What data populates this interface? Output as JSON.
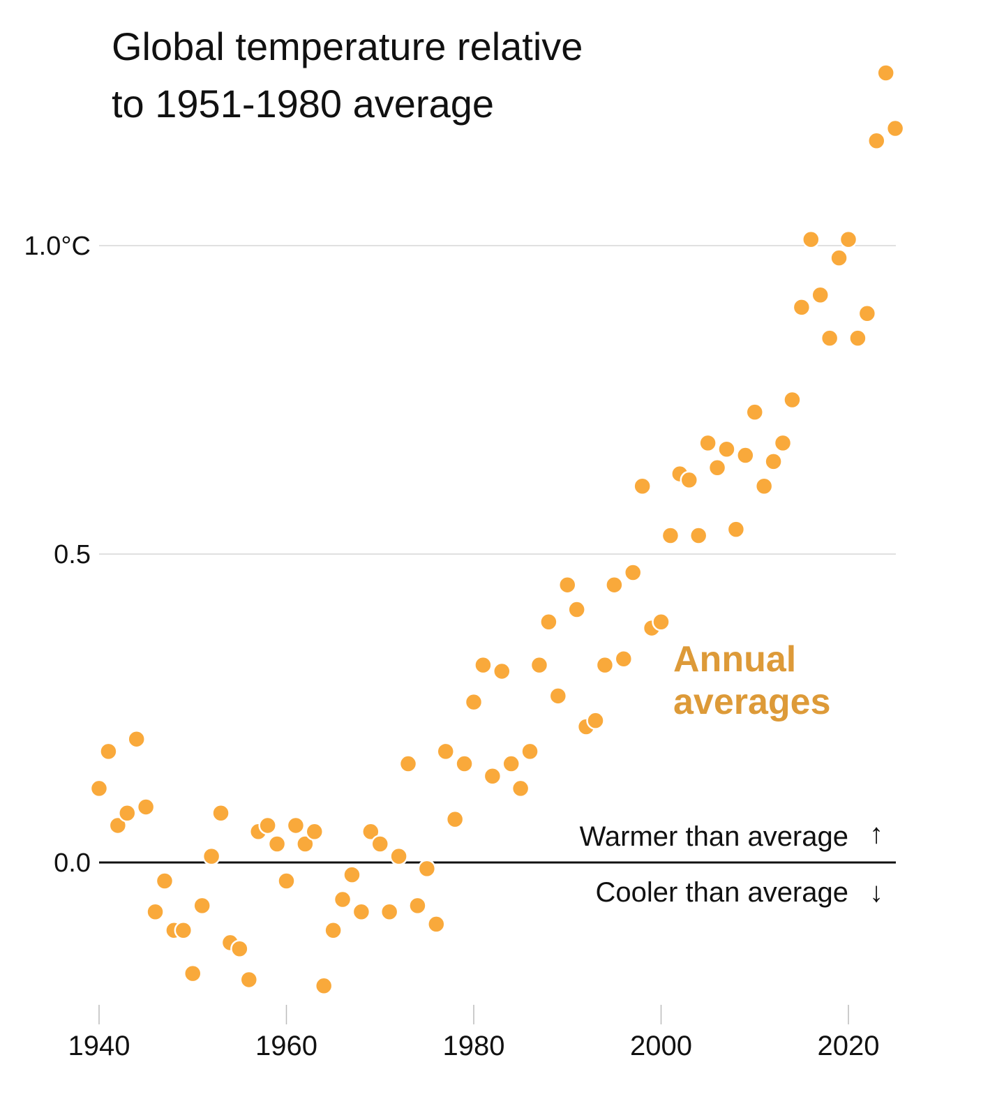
{
  "chart_data": {
    "type": "scatter",
    "title": "Global temperature relative to 1951-1980 average",
    "title_lines": [
      "Global temperature relative",
      "to 1951-1980 average"
    ],
    "xlabel": "",
    "ylabel": "",
    "xlim": [
      1940,
      2025
    ],
    "ylim": [
      -0.22,
      1.3
    ],
    "grid": true,
    "x_ticks": [
      1940,
      1960,
      1980,
      2000,
      2020
    ],
    "x_tick_labels": [
      "1940",
      "1960",
      "1980",
      "2000",
      "2020"
    ],
    "y_ticks": [
      0.0,
      0.5,
      1.0
    ],
    "y_tick_labels": [
      "0.0",
      "0.5",
      "1.0°C"
    ],
    "series": [
      {
        "name": "Annual averages",
        "color": "#f9a93b",
        "label_color": "#dd9a38",
        "x": [
          1940,
          1941,
          1942,
          1943,
          1944,
          1945,
          1946,
          1947,
          1948,
          1949,
          1950,
          1951,
          1952,
          1953,
          1954,
          1955,
          1956,
          1957,
          1958,
          1959,
          1960,
          1961,
          1962,
          1963,
          1964,
          1965,
          1966,
          1967,
          1968,
          1969,
          1970,
          1971,
          1972,
          1973,
          1974,
          1975,
          1976,
          1977,
          1978,
          1979,
          1980,
          1981,
          1982,
          1983,
          1984,
          1985,
          1986,
          1987,
          1988,
          1989,
          1990,
          1991,
          1992,
          1993,
          1994,
          1995,
          1996,
          1997,
          1998,
          1999,
          2000,
          2001,
          2002,
          2003,
          2004,
          2005,
          2006,
          2007,
          2008,
          2009,
          2010,
          2011,
          2012,
          2013,
          2014,
          2015,
          2016,
          2017,
          2018,
          2019,
          2020,
          2021,
          2022,
          2023,
          2024,
          2025
        ],
        "y": [
          0.12,
          0.18,
          0.06,
          0.08,
          0.2,
          0.09,
          -0.08,
          -0.03,
          -0.11,
          -0.11,
          -0.18,
          -0.07,
          0.01,
          0.08,
          -0.13,
          -0.14,
          -0.19,
          0.05,
          0.06,
          0.03,
          -0.03,
          0.06,
          0.03,
          0.05,
          -0.2,
          -0.11,
          -0.06,
          -0.02,
          -0.08,
          0.05,
          0.03,
          -0.08,
          0.01,
          0.16,
          -0.07,
          -0.01,
          -0.1,
          0.18,
          0.07,
          0.16,
          0.26,
          0.32,
          0.14,
          0.31,
          0.16,
          0.12,
          0.18,
          0.32,
          0.39,
          0.27,
          0.45,
          0.41,
          0.22,
          0.23,
          0.32,
          0.45,
          0.33,
          0.47,
          0.61,
          0.38,
          0.39,
          0.53,
          0.63,
          0.62,
          0.53,
          0.68,
          0.64,
          0.67,
          0.54,
          0.66,
          0.73,
          0.61,
          0.65,
          0.68,
          0.75,
          0.9,
          1.01,
          0.92,
          0.85,
          0.98,
          1.01,
          0.85,
          0.89,
          1.17,
          1.28,
          1.19
        ]
      }
    ],
    "baseline": 0.0,
    "annotations": [
      {
        "text": "Warmer than average",
        "arrow": "↑",
        "position": "above-baseline-right"
      },
      {
        "text": "Cooler than average",
        "arrow": "↓",
        "position": "below-baseline-right"
      }
    ],
    "series_label": {
      "line1": "Annual",
      "line2": "averages",
      "position": "center-right"
    },
    "colors": {
      "gridline": "#d6d6d6",
      "baseline": "#111111",
      "tick": "#bbbbbb",
      "text": "#111111"
    }
  }
}
